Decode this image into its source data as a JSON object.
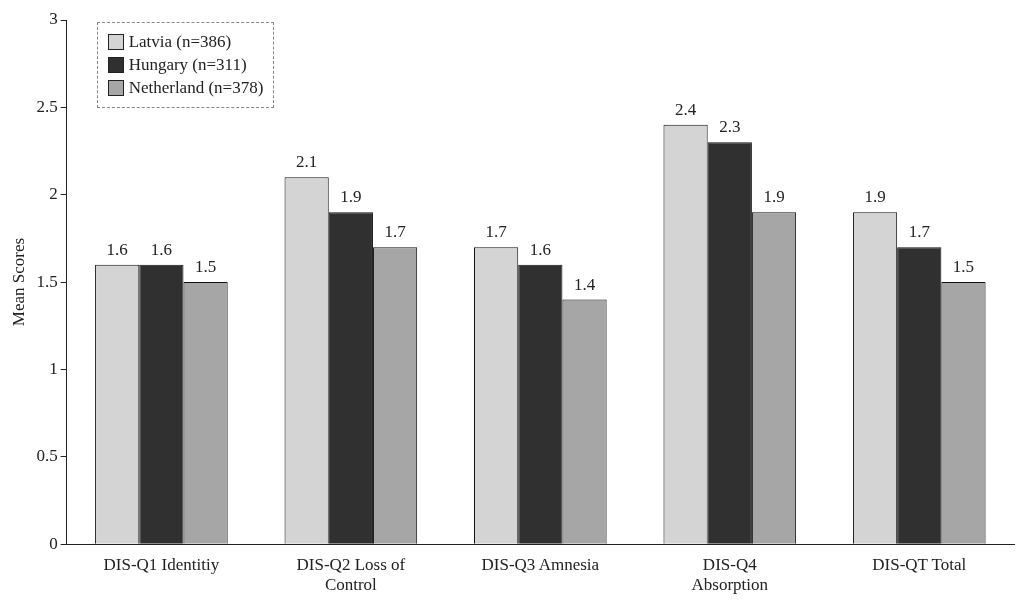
{
  "chart_data": {
    "type": "bar",
    "ylabel": "Mean Scores",
    "categories": [
      "DIS-Q1 Identitiy",
      "DIS-Q2 Loss of\nControl",
      "DIS-Q3 Amnesia",
      "DIS-Q4\nAbsorption",
      "DIS-QT Total"
    ],
    "series": [
      {
        "name": "Latvia (n=386)",
        "color": "#d4d4d4",
        "values": [
          1.6,
          2.1,
          1.7,
          2.4,
          1.9
        ]
      },
      {
        "name": "Hungary (n=311)",
        "color": "#303030",
        "values": [
          1.6,
          1.9,
          1.6,
          2.3,
          1.7
        ]
      },
      {
        "name": "Netherland (n=378)",
        "color": "#a6a6a6",
        "values": [
          1.5,
          1.7,
          1.4,
          1.9,
          1.5
        ]
      }
    ],
    "ylim": [
      0,
      3
    ],
    "yticks": [
      0,
      0.5,
      1,
      1.5,
      2,
      2.5,
      3
    ],
    "grid": false,
    "legend": "top left",
    "data_labels": true
  }
}
